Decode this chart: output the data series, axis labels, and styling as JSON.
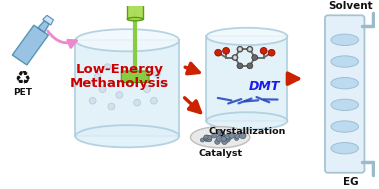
{
  "bg_color": "#ffffff",
  "labels": {
    "pet": "PET",
    "reactor_text1": "Low-Energy",
    "reactor_text2": "Methanolysis",
    "crystallization": "Crystallization",
    "catalyst": "Catalyst",
    "dmt": "DMT",
    "solvent": "Solvent",
    "eg": "EG"
  },
  "colors": {
    "reactor_text": "#cc0000",
    "dmt_text": "#1a1aee",
    "arrow_red": "#cc2200",
    "arrow_pink": "#ee88cc",
    "vessel_fill": "#dff0f8",
    "vessel_edge": "#aaccdd",
    "vessel_fill2": "#dff0f8",
    "column_fill": "#ddeeff",
    "column_tray": "#b8d8f0",
    "column_edge": "#99bbcc",
    "bubble": "#b8d0e0",
    "catalyst_gray": "#7a8a9a",
    "green_stirrer": "#88cc44",
    "green_head": "#aadd55",
    "bottle_blue": "#88b8dd",
    "bottle_edge": "#4488aa",
    "black": "#111111",
    "white": "#ffffff",
    "mol_gray": "#666666",
    "mol_white": "#eeeeee",
    "mol_red": "#cc2200"
  }
}
